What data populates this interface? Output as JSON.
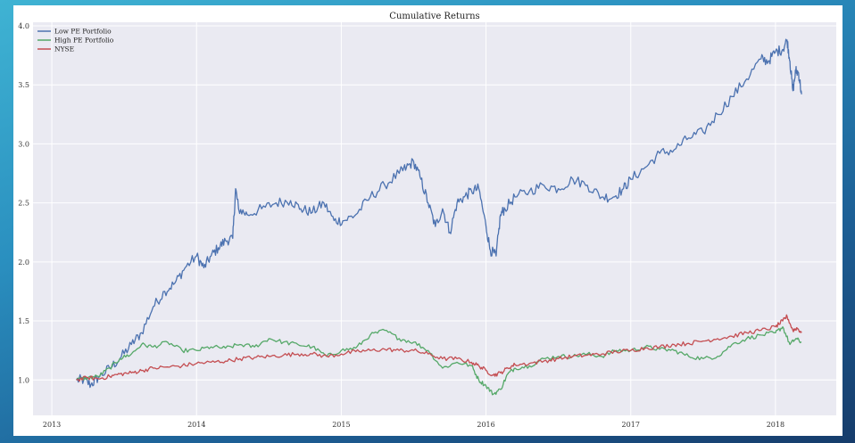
{
  "chart_data": {
    "type": "line",
    "title": "Cumulative Returns",
    "xlabel": "",
    "ylabel": "",
    "xlim": [
      2012.87,
      2018.42
    ],
    "ylim": [
      0.7,
      4.03
    ],
    "xticks": [
      2013,
      2014,
      2015,
      2016,
      2017,
      2018
    ],
    "yticks": [
      1.0,
      1.5,
      2.0,
      2.5,
      3.0,
      3.5,
      4.0
    ],
    "xtick_labels": [
      "2013",
      "2014",
      "2015",
      "2016",
      "2017",
      "2018"
    ],
    "ytick_labels": [
      "1.0",
      "1.5",
      "2.0",
      "2.5",
      "3.0",
      "3.5",
      "4.0"
    ],
    "grid": true,
    "legend_position": "top-left",
    "series": [
      {
        "name": "Low PE Portfolio",
        "color": "#4c72b0",
        "x": [
          2013.17,
          2013.22,
          2013.27,
          2013.32,
          2013.4,
          2013.47,
          2013.55,
          2013.62,
          2013.7,
          2013.78,
          2013.85,
          2013.92,
          2014.0,
          2014.05,
          2014.1,
          2014.15,
          2014.2,
          2014.25,
          2014.27,
          2014.29,
          2014.35,
          2014.45,
          2014.55,
          2014.65,
          2014.72,
          2014.8,
          2014.88,
          2014.95,
          2015.02,
          2015.1,
          2015.2,
          2015.3,
          2015.4,
          2015.45,
          2015.5,
          2015.55,
          2015.6,
          2015.65,
          2015.7,
          2015.75,
          2015.8,
          2015.85,
          2015.9,
          2015.95,
          2016.0,
          2016.03,
          2016.07,
          2016.1,
          2016.13,
          2016.2,
          2016.3,
          2016.4,
          2016.5,
          2016.6,
          2016.7,
          2016.8,
          2016.88,
          2016.95,
          2017.0,
          2017.1,
          2017.2,
          2017.3,
          2017.4,
          2017.5,
          2017.6,
          2017.7,
          2017.8,
          2017.9,
          2017.95,
          2018.0,
          2018.05,
          2018.08,
          2018.1,
          2018.12,
          2018.14,
          2018.16,
          2018.18
        ],
        "values": [
          1.0,
          1.0,
          0.96,
          1.02,
          1.1,
          1.18,
          1.3,
          1.4,
          1.62,
          1.75,
          1.82,
          1.95,
          2.05,
          1.95,
          2.05,
          2.12,
          2.18,
          2.2,
          2.62,
          2.45,
          2.4,
          2.45,
          2.5,
          2.52,
          2.45,
          2.42,
          2.5,
          2.35,
          2.35,
          2.4,
          2.55,
          2.65,
          2.75,
          2.8,
          2.85,
          2.7,
          2.5,
          2.3,
          2.45,
          2.25,
          2.5,
          2.55,
          2.6,
          2.62,
          2.3,
          2.1,
          2.05,
          2.4,
          2.45,
          2.55,
          2.6,
          2.65,
          2.62,
          2.7,
          2.65,
          2.55,
          2.55,
          2.62,
          2.7,
          2.8,
          2.92,
          2.95,
          3.05,
          3.1,
          3.25,
          3.4,
          3.55,
          3.72,
          3.7,
          3.78,
          3.8,
          3.88,
          3.7,
          3.45,
          3.62,
          3.6,
          3.42
        ]
      },
      {
        "name": "High PE Portfolio",
        "color": "#55a868",
        "x": [
          2013.17,
          2013.25,
          2013.32,
          2013.4,
          2013.47,
          2013.55,
          2013.62,
          2013.7,
          2013.8,
          2013.9,
          2014.0,
          2014.1,
          2014.2,
          2014.3,
          2014.4,
          2014.5,
          2014.6,
          2014.7,
          2014.8,
          2014.9,
          2015.0,
          2015.1,
          2015.2,
          2015.3,
          2015.4,
          2015.5,
          2015.6,
          2015.7,
          2015.8,
          2015.9,
          2015.95,
          2016.0,
          2016.05,
          2016.1,
          2016.15,
          2016.2,
          2016.3,
          2016.4,
          2016.5,
          2016.6,
          2016.7,
          2016.8,
          2016.9,
          2017.0,
          2017.1,
          2017.2,
          2017.3,
          2017.4,
          2017.5,
          2017.6,
          2017.7,
          2017.8,
          2017.9,
          2018.0,
          2018.05,
          2018.1,
          2018.14,
          2018.18
        ],
        "values": [
          1.0,
          1.02,
          1.03,
          1.1,
          1.18,
          1.22,
          1.3,
          1.28,
          1.32,
          1.25,
          1.25,
          1.28,
          1.27,
          1.3,
          1.28,
          1.35,
          1.32,
          1.3,
          1.28,
          1.2,
          1.25,
          1.27,
          1.38,
          1.42,
          1.35,
          1.32,
          1.25,
          1.1,
          1.15,
          1.12,
          1.0,
          0.95,
          0.88,
          0.92,
          1.05,
          1.1,
          1.12,
          1.18,
          1.2,
          1.2,
          1.22,
          1.2,
          1.25,
          1.25,
          1.28,
          1.26,
          1.25,
          1.2,
          1.18,
          1.2,
          1.3,
          1.35,
          1.38,
          1.4,
          1.45,
          1.3,
          1.35,
          1.32
        ]
      },
      {
        "name": "NYSE",
        "color": "#c44e52",
        "x": [
          2013.17,
          2013.25,
          2013.32,
          2013.4,
          2013.47,
          2013.55,
          2013.62,
          2013.7,
          2013.8,
          2013.9,
          2014.0,
          2014.1,
          2014.2,
          2014.3,
          2014.4,
          2014.5,
          2014.6,
          2014.7,
          2014.8,
          2014.9,
          2015.0,
          2015.1,
          2015.2,
          2015.3,
          2015.4,
          2015.5,
          2015.6,
          2015.7,
          2015.8,
          2015.9,
          2015.95,
          2016.0,
          2016.05,
          2016.1,
          2016.15,
          2016.2,
          2016.3,
          2016.4,
          2016.5,
          2016.6,
          2016.7,
          2016.8,
          2016.9,
          2017.0,
          2017.1,
          2017.2,
          2017.3,
          2017.4,
          2017.5,
          2017.6,
          2017.7,
          2017.8,
          2017.9,
          2018.0,
          2018.05,
          2018.08,
          2018.12,
          2018.15,
          2018.18
        ],
        "values": [
          1.0,
          1.02,
          1.01,
          1.03,
          1.05,
          1.06,
          1.08,
          1.1,
          1.11,
          1.12,
          1.14,
          1.15,
          1.16,
          1.18,
          1.19,
          1.2,
          1.21,
          1.22,
          1.22,
          1.2,
          1.22,
          1.24,
          1.25,
          1.26,
          1.25,
          1.25,
          1.22,
          1.18,
          1.18,
          1.15,
          1.12,
          1.08,
          1.04,
          1.06,
          1.1,
          1.13,
          1.14,
          1.16,
          1.18,
          1.2,
          1.21,
          1.22,
          1.24,
          1.25,
          1.27,
          1.28,
          1.3,
          1.31,
          1.33,
          1.35,
          1.37,
          1.4,
          1.42,
          1.45,
          1.5,
          1.54,
          1.42,
          1.44,
          1.4
        ]
      }
    ]
  }
}
